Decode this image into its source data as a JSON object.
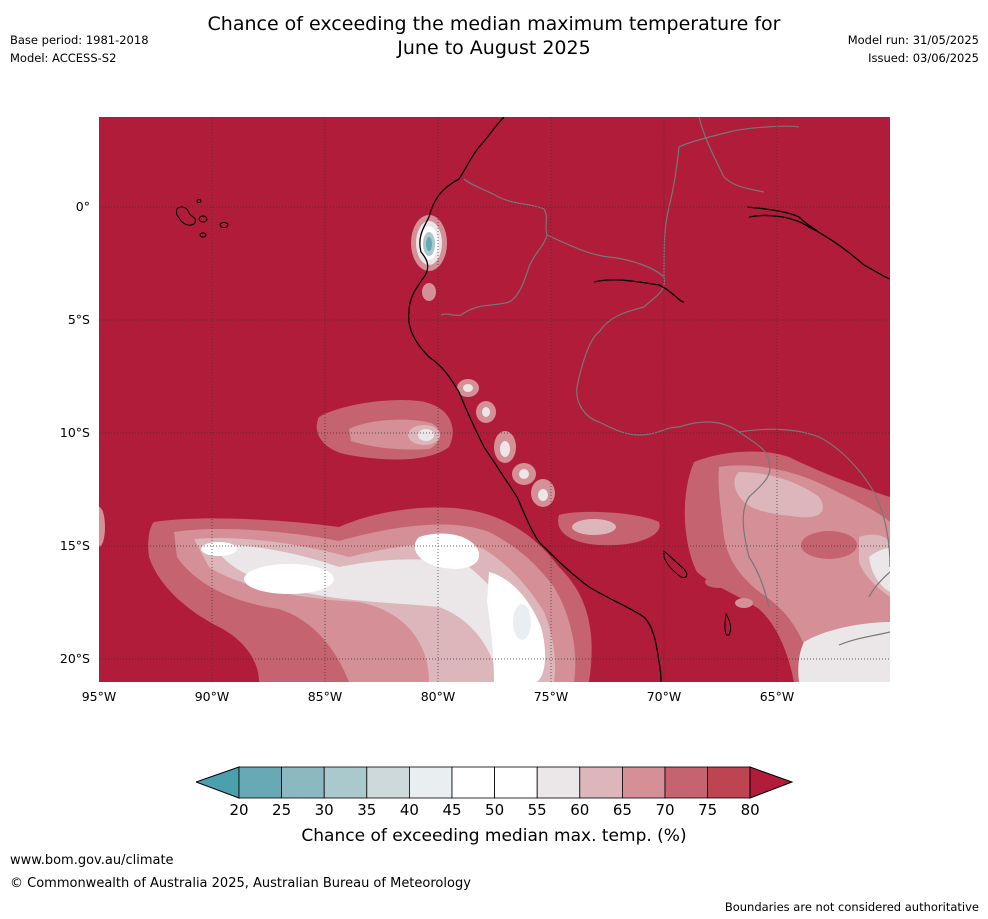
{
  "title": {
    "line1": "Chance of exceeding the median maximum temperature for",
    "line2": "June to August 2025"
  },
  "meta": {
    "base_period": "Base period: 1981-2018",
    "model": "Model: ACCESS-S2",
    "model_run": "Model run: 31/05/2025",
    "issued": "Issued: 03/06/2025"
  },
  "map": {
    "lat_labels": [
      "0°",
      "5°S",
      "10°S",
      "15°S",
      "20°S"
    ],
    "lon_labels": [
      "95°W",
      "90°W",
      "85°W",
      "80°W",
      "75°W",
      "70°W",
      "65°W"
    ],
    "dominant_color": "#b01c39"
  },
  "colorbar": {
    "ticks": [
      "20",
      "25",
      "30",
      "35",
      "40",
      "45",
      "50",
      "55",
      "60",
      "65",
      "70",
      "75",
      "80"
    ],
    "colors": [
      "#67aab5",
      "#8bb8c1",
      "#a9c9cd",
      "#ced9db",
      "#e9eef0",
      "#ffffff",
      "#ffffff",
      "#ebe6e7",
      "#ddb6bb",
      "#d48f97",
      "#c56470",
      "#bd4450"
    ],
    "under_color": "#4aa0ac",
    "over_color": "#b01c39",
    "label": "Chance of exceeding median max. temp. (%)"
  },
  "footer": {
    "website": "www.bom.gov.au/climate",
    "copyright": "© Commonwealth of Australia 2025, Australian Bureau of Meteorology",
    "disclaimer": "Boundaries are not considered authoritative"
  }
}
